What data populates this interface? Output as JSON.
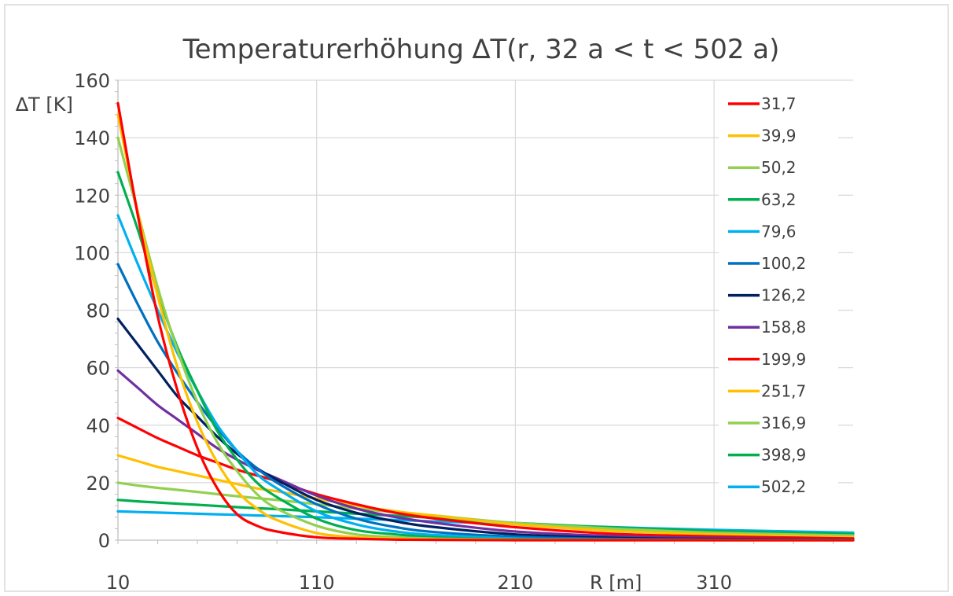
{
  "chart_data": {
    "type": "line",
    "title": "Temperaturerhöhung ∆T(r, 32 a < t < 502 a)",
    "xlabel": "R [m]",
    "ylabel": "∆T [K]",
    "xlim": [
      10,
      380
    ],
    "ylim": [
      0,
      160
    ],
    "x_ticks": [
      "10",
      "110",
      "210",
      "310"
    ],
    "y_ticks": [
      "0",
      "20",
      "40",
      "60",
      "80",
      "100",
      "120",
      "140",
      "160"
    ],
    "grid": true,
    "legend_position": "right",
    "x": [
      10,
      20,
      30,
      40,
      50,
      60,
      70,
      80,
      90,
      110,
      130,
      150,
      170,
      210,
      260,
      310,
      380
    ],
    "series": [
      {
        "name": "31,7",
        "color": "#ff0000",
        "values": [
          152,
          113,
          78,
          52,
          32,
          18,
          9,
          5,
          3,
          1,
          0.5,
          0.2,
          0.1,
          0,
          0,
          0,
          0
        ]
      },
      {
        "name": "39,9",
        "color": "#ffc000",
        "values": [
          148,
          114,
          85,
          60,
          41,
          27,
          17,
          11,
          7,
          2.5,
          1,
          0.5,
          0.2,
          0,
          0,
          0,
          0
        ]
      },
      {
        "name": "50,2",
        "color": "#92d050",
        "values": [
          140,
          114,
          88,
          66,
          48,
          34,
          24,
          16,
          11,
          5,
          2,
          1,
          0.5,
          0.1,
          0,
          0,
          0
        ]
      },
      {
        "name": "63,2",
        "color": "#00b050",
        "values": [
          128,
          108,
          86,
          67,
          52,
          38,
          28,
          20,
          15,
          7.5,
          3.5,
          2,
          1,
          0.3,
          0.1,
          0,
          0
        ]
      },
      {
        "name": "79,6",
        "color": "#00b0f0",
        "values": [
          113,
          96,
          80,
          65,
          52,
          40,
          31,
          23,
          18,
          10,
          5.5,
          3,
          1.8,
          0.6,
          0.2,
          0.1,
          0
        ]
      },
      {
        "name": "100,2",
        "color": "#0070c0",
        "values": [
          96,
          82,
          69,
          58,
          48,
          39,
          31,
          25,
          20,
          12.5,
          7.5,
          4.5,
          2.8,
          1.2,
          0.4,
          0.2,
          0.1
        ]
      },
      {
        "name": "126,2",
        "color": "#002060",
        "values": [
          77,
          68,
          59,
          50,
          43,
          36,
          30,
          25,
          21,
          14,
          9.5,
          6.5,
          4.5,
          2,
          0.8,
          0.4,
          0.2
        ]
      },
      {
        "name": "158,8",
        "color": "#7030a0",
        "values": [
          59,
          53,
          47,
          42,
          37,
          32,
          28,
          24.5,
          21.5,
          15.5,
          11,
          8,
          6,
          3,
          1.4,
          0.7,
          0.3
        ]
      },
      {
        "name": "199,9",
        "color": "#ff0000",
        "values": [
          42.5,
          39,
          35.5,
          32.5,
          29.5,
          27,
          24.5,
          22.5,
          20.5,
          16,
          12.5,
          9.5,
          7.5,
          4.5,
          2.2,
          1.3,
          0.6
        ]
      },
      {
        "name": "251,7",
        "color": "#ffc000",
        "values": [
          29.5,
          27.5,
          25.5,
          24,
          22.5,
          21,
          19.5,
          18,
          17,
          14.5,
          12,
          10,
          8.5,
          5.5,
          3.2,
          2,
          1
        ]
      },
      {
        "name": "316,9",
        "color": "#92d050",
        "values": [
          20,
          19,
          18.2,
          17.5,
          16.8,
          16,
          15.3,
          14.6,
          14,
          12.5,
          11,
          9.7,
          8.5,
          6,
          4,
          2.6,
          1.6
        ]
      },
      {
        "name": "398,9",
        "color": "#00b050",
        "values": [
          14,
          13.5,
          13.1,
          12.7,
          12.3,
          11.9,
          11.5,
          11.1,
          10.8,
          10,
          9.2,
          8.5,
          7.7,
          6,
          4.4,
          3.2,
          2.1
        ]
      },
      {
        "name": "502,2",
        "color": "#00b0f0",
        "values": [
          10,
          9.8,
          9.6,
          9.4,
          9.2,
          9,
          8.8,
          8.6,
          8.4,
          8,
          7.5,
          7,
          6.5,
          5.6,
          4.5,
          3.6,
          2.6
        ]
      }
    ]
  }
}
